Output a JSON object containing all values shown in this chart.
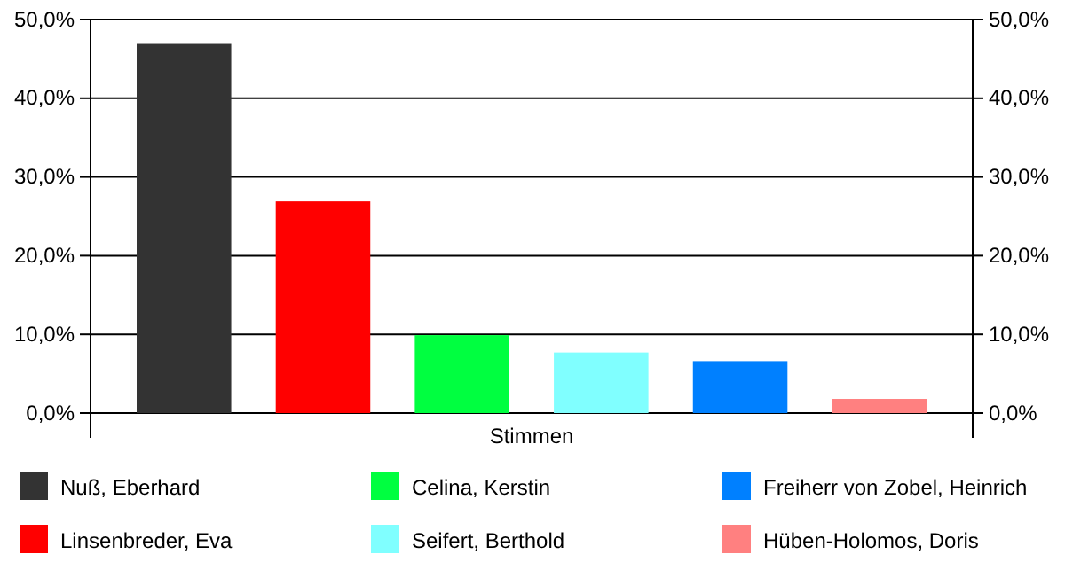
{
  "chart_data": {
    "type": "bar",
    "categories": [
      "Stimmen"
    ],
    "series": [
      {
        "name": "Nuß, Eberhard",
        "color": "#333333",
        "values": [
          46.9
        ]
      },
      {
        "name": "Linsenbreder, Eva",
        "color": "#ff0000",
        "values": [
          26.9
        ]
      },
      {
        "name": "Celina, Kerstin",
        "color": "#00ff40",
        "values": [
          9.9
        ]
      },
      {
        "name": "Seifert, Berthold",
        "color": "#80ffff",
        "values": [
          7.7
        ]
      },
      {
        "name": "Freiherr von Zobel, Heinrich",
        "color": "#0080ff",
        "values": [
          6.6
        ]
      },
      {
        "name": "Hüben-Holomos, Doris",
        "color": "#ff8080",
        "values": [
          1.8
        ]
      }
    ],
    "ylim": [
      0,
      50
    ],
    "yticks": [
      {
        "value": 0,
        "label": "0,0%"
      },
      {
        "value": 10,
        "label": "10,0%"
      },
      {
        "value": 20,
        "label": "20,0%"
      },
      {
        "value": 30,
        "label": "30,0%"
      },
      {
        "value": 40,
        "label": "40,0%"
      },
      {
        "value": 50,
        "label": "50,0%"
      }
    ],
    "grid": "y",
    "legend": "bottom"
  }
}
